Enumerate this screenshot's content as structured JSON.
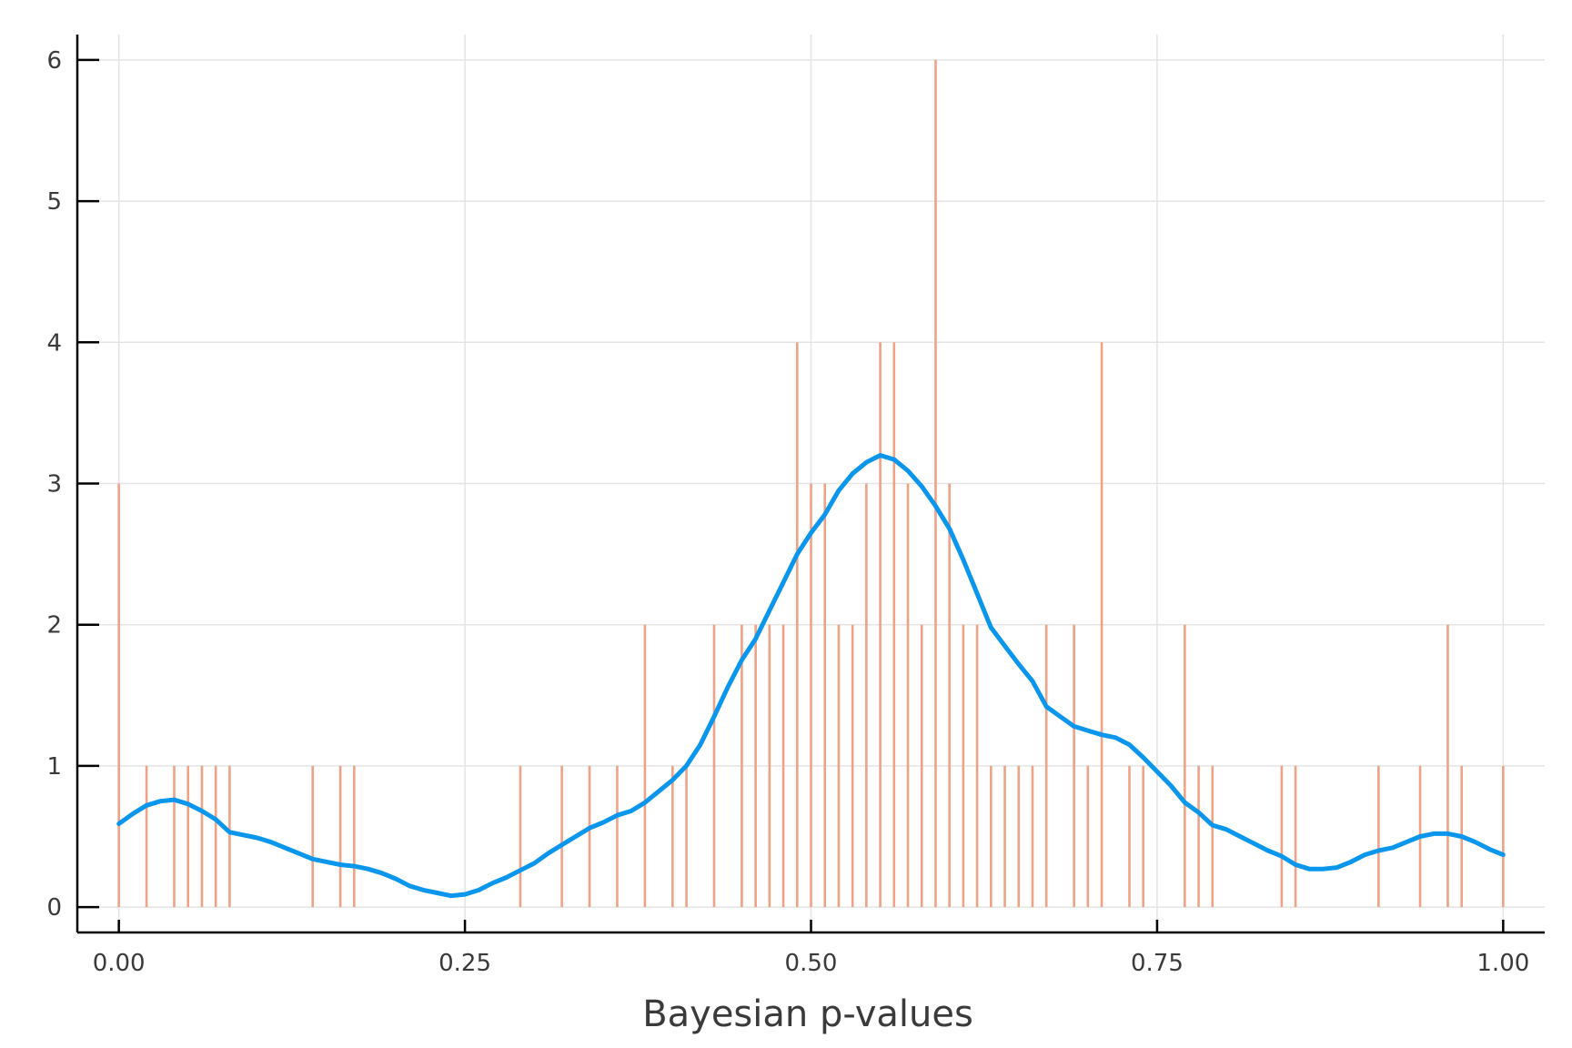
{
  "chart_data": {
    "type": "bar",
    "xlabel": "Bayesian p-values",
    "ylabel": "",
    "xlim": [
      -0.03,
      1.03
    ],
    "ylim": [
      -0.18,
      6.18
    ],
    "grid": true,
    "legend": "none",
    "xticks": [
      {
        "value": 0.0,
        "label": "0.00"
      },
      {
        "value": 0.25,
        "label": "0.25"
      },
      {
        "value": 0.5,
        "label": "0.50"
      },
      {
        "value": 0.75,
        "label": "0.75"
      },
      {
        "value": 1.0,
        "label": "1.00"
      }
    ],
    "yticks": [
      {
        "value": 0,
        "label": "0"
      },
      {
        "value": 1,
        "label": "1"
      },
      {
        "value": 2,
        "label": "2"
      },
      {
        "value": 3,
        "label": "3"
      },
      {
        "value": 4,
        "label": "4"
      },
      {
        "value": 5,
        "label": "5"
      },
      {
        "value": 6,
        "label": "6"
      }
    ],
    "series": [
      {
        "type": "spikes",
        "color": "#eea286",
        "points": [
          [
            0.0,
            3
          ],
          [
            0.02,
            1
          ],
          [
            0.04,
            1
          ],
          [
            0.05,
            1
          ],
          [
            0.06,
            1
          ],
          [
            0.07,
            1
          ],
          [
            0.08,
            1
          ],
          [
            0.14,
            1
          ],
          [
            0.16,
            1
          ],
          [
            0.17,
            1
          ],
          [
            0.29,
            1
          ],
          [
            0.32,
            1
          ],
          [
            0.34,
            1
          ],
          [
            0.36,
            1
          ],
          [
            0.38,
            2
          ],
          [
            0.4,
            1
          ],
          [
            0.41,
            1
          ],
          [
            0.43,
            2
          ],
          [
            0.45,
            2
          ],
          [
            0.46,
            2
          ],
          [
            0.47,
            2
          ],
          [
            0.48,
            2
          ],
          [
            0.49,
            4
          ],
          [
            0.5,
            3
          ],
          [
            0.51,
            3
          ],
          [
            0.52,
            2
          ],
          [
            0.53,
            2
          ],
          [
            0.54,
            3
          ],
          [
            0.55,
            4
          ],
          [
            0.56,
            4
          ],
          [
            0.57,
            3
          ],
          [
            0.58,
            2
          ],
          [
            0.59,
            6
          ],
          [
            0.6,
            3
          ],
          [
            0.61,
            2
          ],
          [
            0.62,
            2
          ],
          [
            0.63,
            1
          ],
          [
            0.64,
            1
          ],
          [
            0.65,
            1
          ],
          [
            0.66,
            1
          ],
          [
            0.67,
            2
          ],
          [
            0.69,
            2
          ],
          [
            0.7,
            1
          ],
          [
            0.71,
            4
          ],
          [
            0.73,
            1
          ],
          [
            0.74,
            1
          ],
          [
            0.77,
            2
          ],
          [
            0.78,
            1
          ],
          [
            0.79,
            1
          ],
          [
            0.84,
            1
          ],
          [
            0.85,
            1
          ],
          [
            0.91,
            1
          ],
          [
            0.94,
            1
          ],
          [
            0.96,
            2
          ],
          [
            0.97,
            1
          ],
          [
            1.0,
            1
          ]
        ]
      },
      {
        "type": "line",
        "color": "#0a96ec",
        "points": [
          [
            0.0,
            0.59
          ],
          [
            0.01,
            0.66
          ],
          [
            0.02,
            0.72
          ],
          [
            0.03,
            0.75
          ],
          [
            0.04,
            0.76
          ],
          [
            0.05,
            0.73
          ],
          [
            0.06,
            0.68
          ],
          [
            0.07,
            0.62
          ],
          [
            0.08,
            0.53
          ],
          [
            0.1,
            0.49
          ],
          [
            0.11,
            0.46
          ],
          [
            0.12,
            0.42
          ],
          [
            0.13,
            0.38
          ],
          [
            0.14,
            0.34
          ],
          [
            0.15,
            0.32
          ],
          [
            0.16,
            0.3
          ],
          [
            0.17,
            0.29
          ],
          [
            0.18,
            0.27
          ],
          [
            0.19,
            0.24
          ],
          [
            0.2,
            0.2
          ],
          [
            0.21,
            0.15
          ],
          [
            0.22,
            0.12
          ],
          [
            0.23,
            0.1
          ],
          [
            0.24,
            0.08
          ],
          [
            0.25,
            0.09
          ],
          [
            0.26,
            0.12
          ],
          [
            0.27,
            0.17
          ],
          [
            0.28,
            0.21
          ],
          [
            0.29,
            0.26
          ],
          [
            0.3,
            0.31
          ],
          [
            0.31,
            0.38
          ],
          [
            0.32,
            0.44
          ],
          [
            0.33,
            0.5
          ],
          [
            0.34,
            0.56
          ],
          [
            0.35,
            0.6
          ],
          [
            0.36,
            0.65
          ],
          [
            0.37,
            0.68
          ],
          [
            0.38,
            0.74
          ],
          [
            0.39,
            0.82
          ],
          [
            0.4,
            0.9
          ],
          [
            0.41,
            1.0
          ],
          [
            0.42,
            1.15
          ],
          [
            0.43,
            1.35
          ],
          [
            0.44,
            1.56
          ],
          [
            0.45,
            1.75
          ],
          [
            0.46,
            1.9
          ],
          [
            0.47,
            2.1
          ],
          [
            0.48,
            2.3
          ],
          [
            0.49,
            2.5
          ],
          [
            0.5,
            2.65
          ],
          [
            0.51,
            2.78
          ],
          [
            0.52,
            2.95
          ],
          [
            0.53,
            3.07
          ],
          [
            0.54,
            3.15
          ],
          [
            0.55,
            3.2
          ],
          [
            0.56,
            3.17
          ],
          [
            0.57,
            3.09
          ],
          [
            0.58,
            2.98
          ],
          [
            0.59,
            2.84
          ],
          [
            0.6,
            2.68
          ],
          [
            0.61,
            2.46
          ],
          [
            0.62,
            2.22
          ],
          [
            0.63,
            1.98
          ],
          [
            0.64,
            1.85
          ],
          [
            0.65,
            1.72
          ],
          [
            0.66,
            1.6
          ],
          [
            0.67,
            1.42
          ],
          [
            0.68,
            1.35
          ],
          [
            0.69,
            1.28
          ],
          [
            0.7,
            1.25
          ],
          [
            0.71,
            1.22
          ],
          [
            0.72,
            1.2
          ],
          [
            0.73,
            1.15
          ],
          [
            0.74,
            1.06
          ],
          [
            0.75,
            0.96
          ],
          [
            0.76,
            0.86
          ],
          [
            0.77,
            0.74
          ],
          [
            0.78,
            0.67
          ],
          [
            0.79,
            0.58
          ],
          [
            0.8,
            0.55
          ],
          [
            0.81,
            0.5
          ],
          [
            0.82,
            0.45
          ],
          [
            0.83,
            0.4
          ],
          [
            0.84,
            0.36
          ],
          [
            0.85,
            0.3
          ],
          [
            0.86,
            0.27
          ],
          [
            0.87,
            0.27
          ],
          [
            0.88,
            0.28
          ],
          [
            0.89,
            0.32
          ],
          [
            0.9,
            0.37
          ],
          [
            0.91,
            0.4
          ],
          [
            0.92,
            0.42
          ],
          [
            0.93,
            0.46
          ],
          [
            0.94,
            0.5
          ],
          [
            0.95,
            0.52
          ],
          [
            0.96,
            0.52
          ],
          [
            0.97,
            0.5
          ],
          [
            0.98,
            0.46
          ],
          [
            0.99,
            0.41
          ],
          [
            1.0,
            0.37
          ]
        ]
      }
    ]
  }
}
